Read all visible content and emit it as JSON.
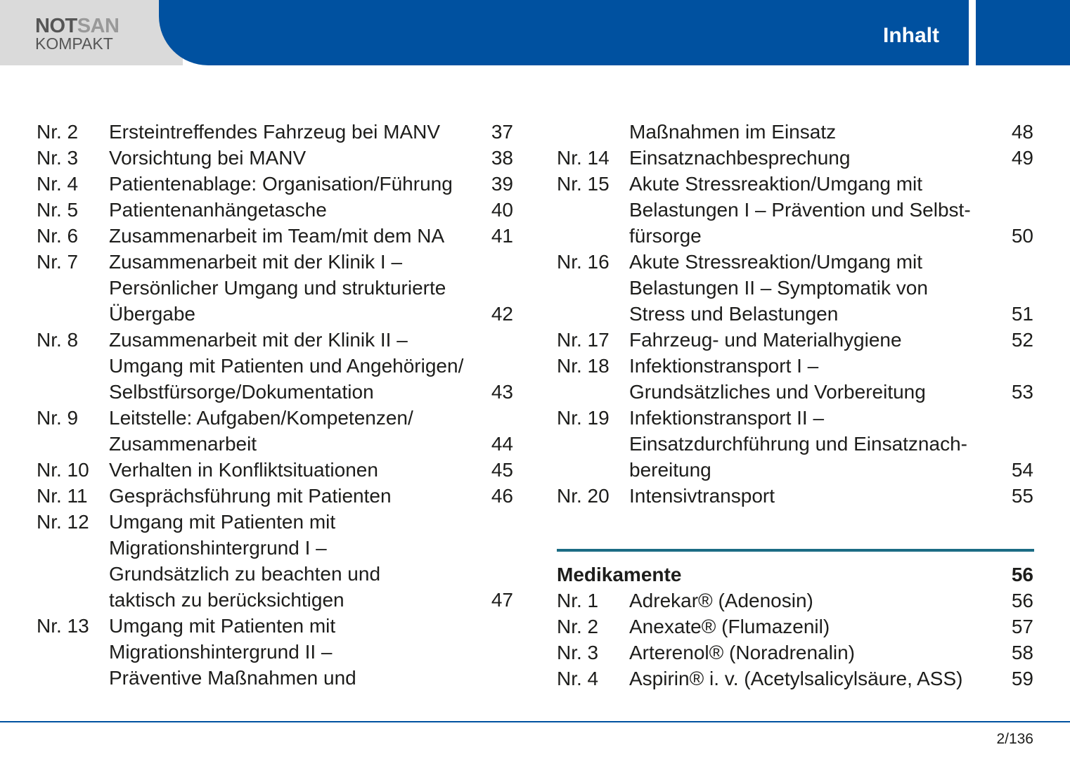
{
  "header": {
    "logo_bold": "NOT",
    "logo_light": "SAN",
    "logo_sub": "KOMPAKT",
    "title": "Inhalt"
  },
  "left_column": {
    "entries": [
      {
        "number": "Nr. 2",
        "lines": [
          "Ersteintreffendes Fahrzeug bei MANV"
        ],
        "page": 37
      },
      {
        "number": "Nr. 3",
        "lines": [
          "Vorsichtung bei MANV"
        ],
        "page": 38
      },
      {
        "number": "Nr. 4",
        "lines": [
          "Patientenablage: Organisation/Führung"
        ],
        "page": 39
      },
      {
        "number": "Nr. 5",
        "lines": [
          "Patientenanhängetasche"
        ],
        "page": 40
      },
      {
        "number": "Nr. 6",
        "lines": [
          "Zusammenarbeit im Team/mit dem NA"
        ],
        "page": 41
      },
      {
        "number": "Nr. 7",
        "lines": [
          "Zusammenarbeit mit der Klinik I –",
          "Persönlicher Umgang und strukturierte",
          "Übergabe"
        ],
        "page": 42
      },
      {
        "number": "Nr. 8",
        "lines": [
          "Zusammenarbeit mit der Klinik II –",
          "Umgang mit Patienten und Angehörigen/",
          "Selbstfürsorge/Dokumentation"
        ],
        "page": 43
      },
      {
        "number": "Nr. 9",
        "lines": [
          "Leitstelle: Aufgaben/Kompetenzen/",
          "Zusammenarbeit"
        ],
        "page": 44
      },
      {
        "number": "Nr. 10",
        "lines": [
          "Verhalten in Konfliktsituationen"
        ],
        "page": 45
      },
      {
        "number": "Nr. 11",
        "lines": [
          "Gesprächsführung mit Patienten"
        ],
        "page": 46
      },
      {
        "number": "Nr. 12",
        "lines": [
          "Umgang mit Patienten mit",
          "Migrationshintergrund I –",
          "Grundsätzlich zu beachten und",
          "taktisch zu berücksichtigen"
        ],
        "page": 47
      },
      {
        "number": "Nr. 13",
        "lines": [
          "Umgang mit Patienten mit",
          "Migrationshintergrund II –",
          "Präventive Maßnahmen und"
        ]
      }
    ]
  },
  "right_column": {
    "entries": [
      {
        "lines": [
          "Maßnahmen im Einsatz"
        ],
        "page": 48
      },
      {
        "number": "Nr. 14",
        "lines": [
          "Einsatznachbesprechung"
        ],
        "page": 49
      },
      {
        "number": "Nr. 15",
        "lines": [
          "Akute Stressreaktion/Umgang mit",
          "Belastungen I – Prävention und Selbst-",
          "fürsorge"
        ],
        "page": 50
      },
      {
        "number": "Nr. 16",
        "lines": [
          "Akute Stressreaktion/Umgang mit",
          "Belastungen II – Symptomatik von",
          "Stress und Belastungen"
        ],
        "page": 51
      },
      {
        "number": "Nr. 17",
        "lines": [
          "Fahrzeug- und Materialhygiene"
        ],
        "page": 52
      },
      {
        "number": "Nr. 18",
        "lines": [
          "Infektionstransport I –",
          "Grundsätzliches und Vorbereitung"
        ],
        "page": 53
      },
      {
        "number": "Nr. 19",
        "lines": [
          "Infektionstransport II –",
          "Einsatzdurchführung und Einsatznach-",
          "bereitung"
        ],
        "page": 54
      },
      {
        "number": "Nr. 20",
        "lines": [
          "Intensivtransport"
        ],
        "page": 55
      }
    ]
  },
  "medikamente": {
    "heading": "Medikamente",
    "page": 56,
    "entries": [
      {
        "number": "Nr. 1",
        "lines": [
          "Adrekar® (Adenosin)"
        ],
        "page": 56
      },
      {
        "number": "Nr. 2",
        "lines": [
          "Anexate® (Flumazenil)"
        ],
        "page": 57
      },
      {
        "number": "Nr. 3",
        "lines": [
          "Arterenol® (Noradrenalin)"
        ],
        "page": 58
      },
      {
        "number": "Nr. 4",
        "lines": [
          "Aspirin® i. v. (Acetylsalicylsäure, ASS)"
        ],
        "page": 59
      }
    ]
  },
  "footer": {
    "page_indicator": "2/136"
  }
}
